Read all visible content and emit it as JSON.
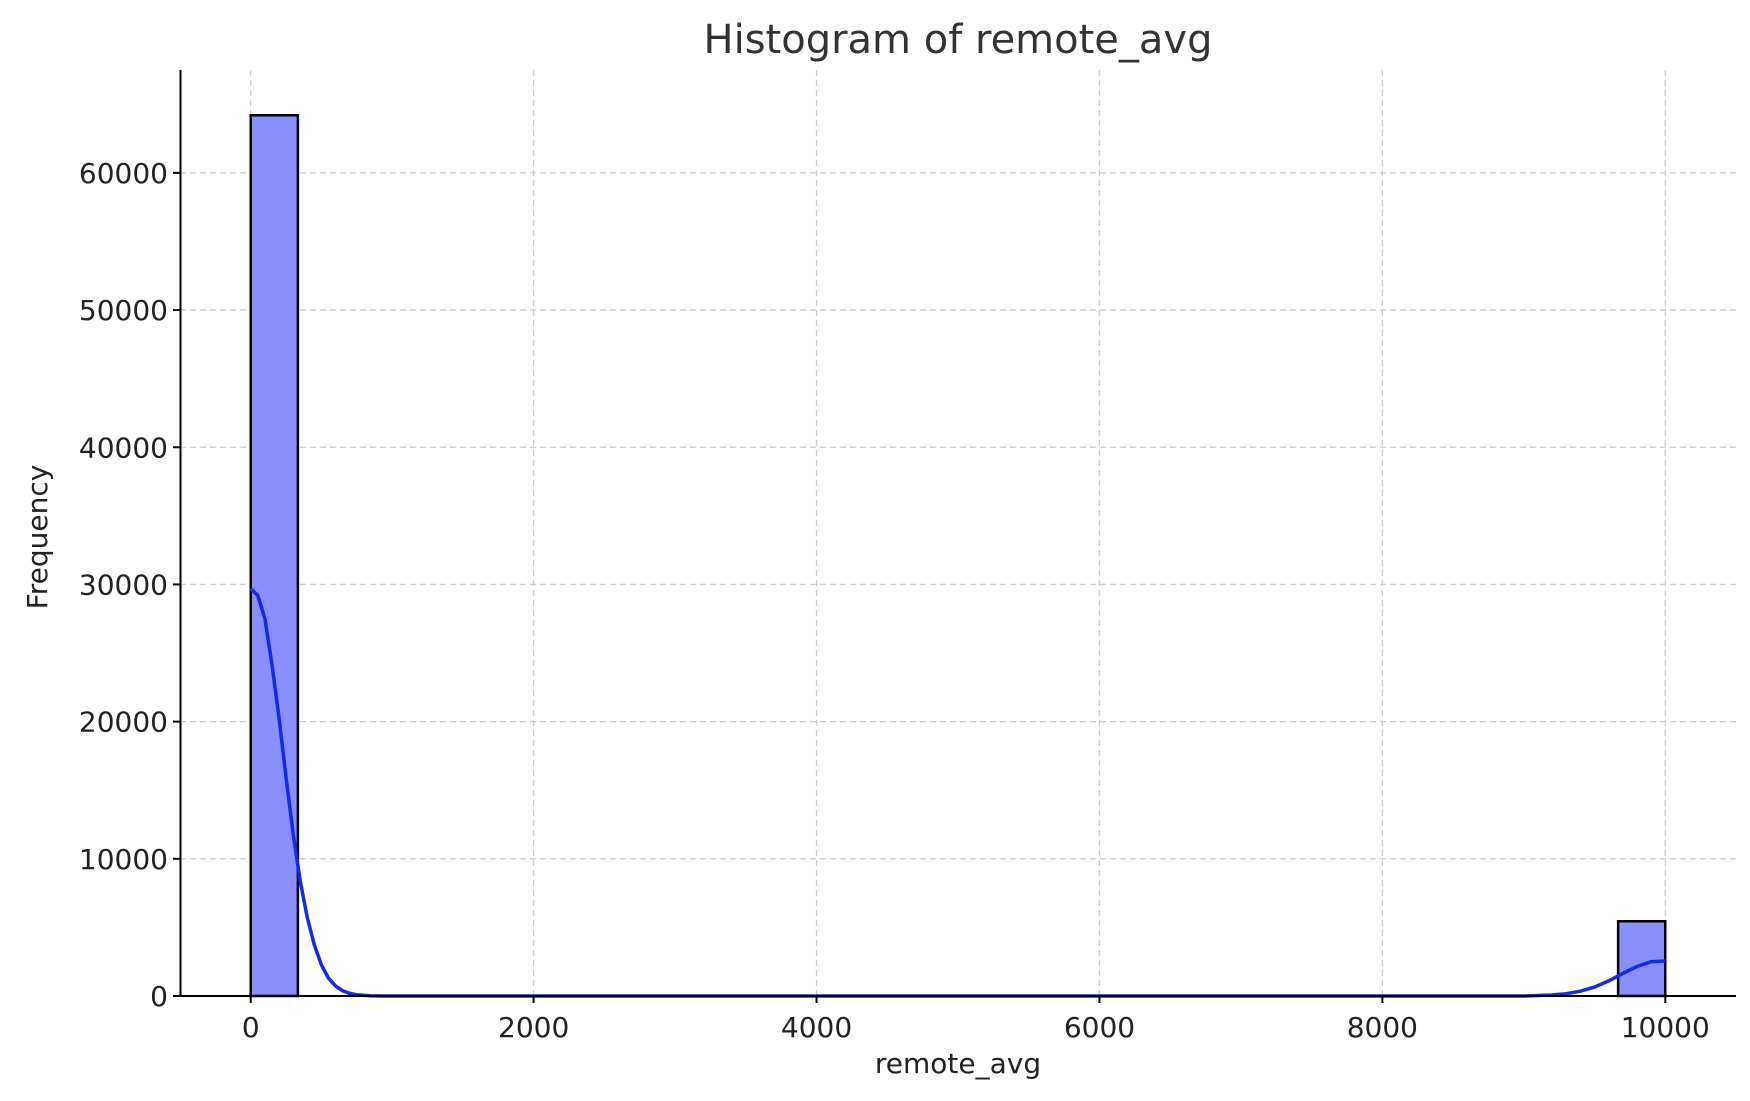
{
  "chart_data": {
    "type": "bar",
    "title": "Histogram of remote_avg",
    "xlabel": "remote_avg",
    "ylabel": "Frequency",
    "xlim": [
      -500,
      10500
    ],
    "ylim": [
      0,
      67500
    ],
    "xticks": [
      0,
      2000,
      4000,
      6000,
      8000,
      10000
    ],
    "yticks": [
      0,
      10000,
      20000,
      30000,
      40000,
      50000,
      60000
    ],
    "grid": true,
    "bin_width": 333.33,
    "bins": [
      {
        "x0": 0,
        "x1": 333.33,
        "count": 64200
      },
      {
        "x0": 9666.67,
        "x1": 10000,
        "count": 5450
      }
    ],
    "kde": {
      "x": [
        0,
        50,
        100,
        150,
        200,
        250,
        300,
        350,
        400,
        450,
        500,
        550,
        600,
        650,
        700,
        750,
        800,
        850,
        900,
        950,
        1000,
        1100,
        1200,
        1500,
        3000,
        6000,
        9000,
        9200,
        9300,
        9400,
        9500,
        9600,
        9700,
        9800,
        9900,
        10000
      ],
      "y": [
        29700,
        29200,
        27500,
        24200,
        20300,
        15900,
        11800,
        8400,
        5700,
        3700,
        2250,
        1300,
        720,
        380,
        190,
        90,
        42,
        18,
        8,
        3,
        1,
        0,
        0,
        0,
        0,
        0,
        0,
        70,
        170,
        350,
        650,
        1100,
        1650,
        2150,
        2500,
        2550
      ]
    },
    "colors": {
      "bar_fill": "#8a8fff",
      "kde_line": "#1428ee"
    }
  }
}
